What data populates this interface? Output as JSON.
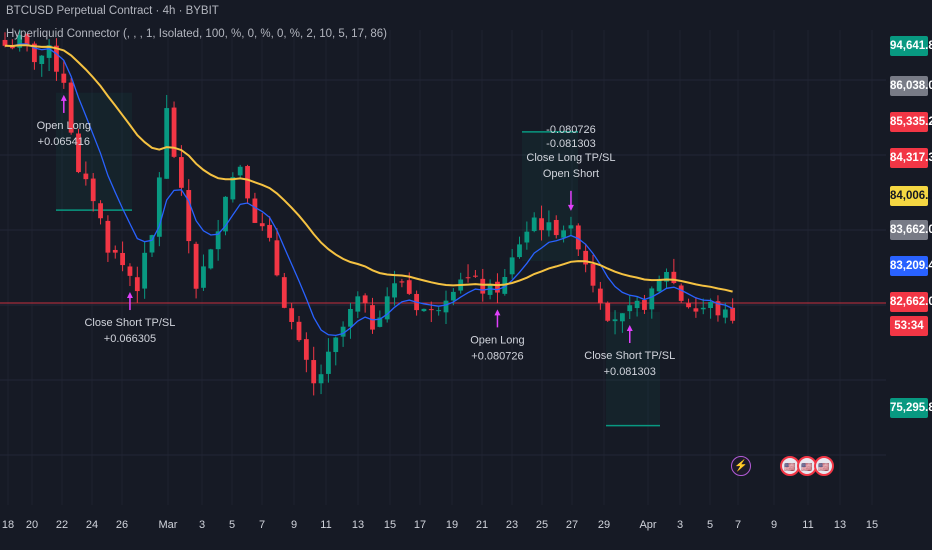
{
  "header": {
    "title": "BTCUSD Perpetual Contract · 4h · BYBIT",
    "indicator": "Hyperliquid Connector (, , , 1, Isolated, 100, %, 0, %, 0, %, 2, 10, 5, 17, 86)"
  },
  "price_axis": {
    "tags": [
      {
        "text": "94,641.8",
        "color": "#089981"
      },
      {
        "text": "86,038.0",
        "color": "#787b86"
      },
      {
        "text": "85,335.2",
        "color": "#f23645"
      },
      {
        "text": "84,317.3",
        "color": "#f23645"
      },
      {
        "text": "84,006.0",
        "color": "#f5d742",
        "text_color": "#131722"
      },
      {
        "text": "83,662.0",
        "color": "#787b86"
      },
      {
        "text": "83,209.4",
        "color": "#2962ff"
      },
      {
        "text": "82,662.0",
        "color": "#f23645"
      },
      {
        "text": "53:34",
        "color": "#f23645"
      },
      {
        "text": "75,295.8",
        "color": "#089981"
      }
    ]
  },
  "events": {
    "badges": [
      {
        "name": "bolt-event-icon",
        "glyph": "⚡"
      },
      {
        "name": "us-flag-event-icon-1",
        "glyph": "🇺🇸"
      },
      {
        "name": "us-flag-event-icon-2",
        "glyph": "🇺🇸"
      },
      {
        "name": "us-flag-event-icon-3",
        "glyph": "🇺🇸"
      }
    ]
  },
  "colors": {
    "background": "#161a25",
    "grid": "#232736",
    "up": "#089981",
    "down": "#f23645",
    "ma_fast": "#2962ff",
    "ma_slow": "#f5c242",
    "signal": "#e040fb",
    "text": "#d1d4dc"
  },
  "chart_data": {
    "type": "candlestick",
    "symbol": "BTCUSD Perpetual Contract",
    "interval": "4h",
    "exchange": "BYBIT",
    "x_tick_labels": [
      "18",
      "20",
      "22",
      "24",
      "26",
      "Mar",
      "3",
      "5",
      "7",
      "9",
      "11",
      "13",
      "15",
      "17",
      "19",
      "21",
      "23",
      "25",
      "27",
      "29",
      "Apr",
      "3",
      "5",
      "7",
      "9",
      "11",
      "13",
      "15"
    ],
    "ylim": [
      73000,
      97000
    ],
    "close_anchors": [
      [
        0,
        96200
      ],
      [
        2,
        96400
      ],
      [
        4,
        95600
      ],
      [
        6,
        95800
      ],
      [
        8,
        94500
      ],
      [
        10,
        89500
      ],
      [
        12,
        88500
      ],
      [
        14,
        86000
      ],
      [
        16,
        85000
      ],
      [
        18,
        84000
      ],
      [
        20,
        86400
      ],
      [
        22,
        92800
      ],
      [
        24,
        88500
      ],
      [
        26,
        84000
      ],
      [
        28,
        85500
      ],
      [
        30,
        88800
      ],
      [
        32,
        90200
      ],
      [
        34,
        87500
      ],
      [
        36,
        86000
      ],
      [
        38,
        83200
      ],
      [
        40,
        80800
      ],
      [
        42,
        78800
      ],
      [
        44,
        80200
      ],
      [
        46,
        81800
      ],
      [
        48,
        83200
      ],
      [
        50,
        82000
      ],
      [
        52,
        83500
      ],
      [
        54,
        84200
      ],
      [
        56,
        83000
      ],
      [
        58,
        82500
      ],
      [
        60,
        83600
      ],
      [
        62,
        84500
      ],
      [
        64,
        84000
      ],
      [
        66,
        83600
      ],
      [
        68,
        84200
      ],
      [
        70,
        86200
      ],
      [
        72,
        87400
      ],
      [
        74,
        86800
      ],
      [
        76,
        87000
      ],
      [
        78,
        86200
      ],
      [
        80,
        84200
      ],
      [
        82,
        82600
      ],
      [
        84,
        82200
      ],
      [
        86,
        82800
      ],
      [
        88,
        83400
      ],
      [
        90,
        84800
      ],
      [
        92,
        83300
      ],
      [
        94,
        82700
      ],
      [
        96,
        82900
      ],
      [
        98,
        82400
      ]
    ],
    "ma_fast_label": "",
    "ma_slow_label": "",
    "signals": [
      {
        "name": "open-long-1",
        "label": "Open Long",
        "value": "+0.065416",
        "direction": "up",
        "x": 8
      },
      {
        "name": "close-short-1",
        "label": "Close Short TP/SL",
        "value": "+0.066305",
        "direction": "up",
        "x": 17
      },
      {
        "name": "open-long-2",
        "label": "Open Long",
        "value": "+0.080726",
        "direction": "up",
        "x": 67
      },
      {
        "name": "close-long-open-short",
        "label": "Close Long TP/SL",
        "value": "-0.080726",
        "value2": "-0.081303",
        "label2": "Open Short",
        "direction": "down",
        "x": 77
      },
      {
        "name": "close-short-2",
        "label": "Close Short TP/SL",
        "value": "+0.081303",
        "direction": "up",
        "x": 85
      }
    ]
  }
}
